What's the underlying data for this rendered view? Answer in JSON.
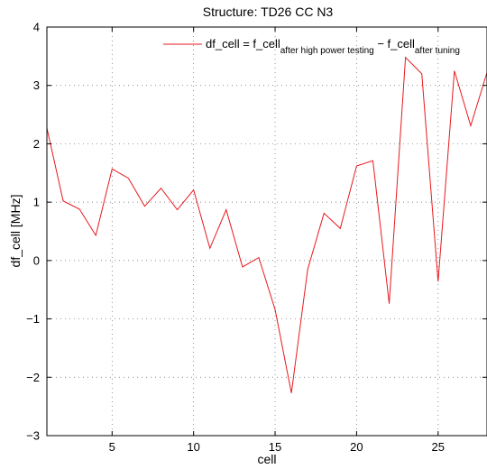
{
  "chart_data": {
    "type": "line",
    "title": "Structure: TD26 CC N3",
    "xlabel": "cell",
    "ylabel": "df_cell  [MHz]",
    "xlim": [
      1,
      28
    ],
    "ylim": [
      -3,
      4
    ],
    "xticks": [
      5,
      10,
      15,
      20,
      25
    ],
    "yticks": [
      -3,
      -2,
      -1,
      0,
      1,
      2,
      3,
      4
    ],
    "grid": true,
    "legend_position": "top-right",
    "legend": {
      "main": "df_cell = f_cell",
      "sub1": "after high power testing",
      "minus": " − f_cell",
      "sub2": "after tuning"
    },
    "series": [
      {
        "color": "#e8191e",
        "x": [
          1,
          2,
          3,
          4,
          5,
          6,
          7,
          8,
          9,
          10,
          11,
          12,
          13,
          14,
          15,
          16,
          17,
          18,
          19,
          20,
          21,
          22,
          23,
          24,
          25,
          26,
          27,
          28
        ],
        "y": [
          2.27,
          1.02,
          0.88,
          0.43,
          1.57,
          1.41,
          0.93,
          1.24,
          0.87,
          1.21,
          0.21,
          0.87,
          -0.11,
          0.05,
          -0.84,
          -2.27,
          -0.15,
          0.81,
          0.55,
          1.62,
          1.71,
          -0.74,
          3.48,
          3.2,
          -0.36,
          3.25,
          2.31,
          3.22
        ]
      }
    ]
  }
}
